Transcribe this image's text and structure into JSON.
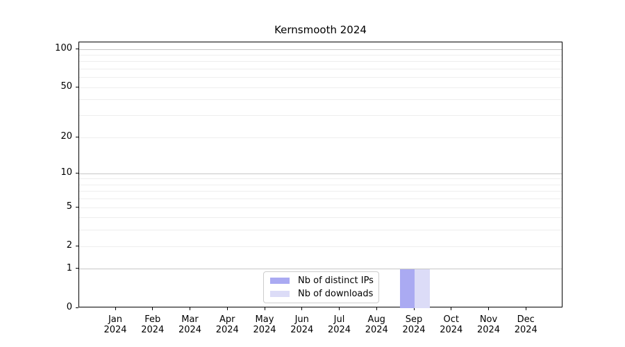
{
  "chart_data": {
    "type": "bar",
    "title": "Kernsmooth 2024",
    "x_months": [
      "Jan",
      "Feb",
      "Mar",
      "Apr",
      "May",
      "Jun",
      "Jul",
      "Aug",
      "Sep",
      "Oct",
      "Nov",
      "Dec"
    ],
    "x_year": "2024",
    "series": [
      {
        "name": "Nb of distinct IPs",
        "color": "#aaaaf2",
        "values": [
          0,
          0,
          0,
          0,
          0,
          0,
          0,
          0,
          1,
          0,
          0,
          0
        ]
      },
      {
        "name": "Nb of downloads",
        "color": "#dcdcf7",
        "values": [
          0,
          0,
          0,
          0,
          0,
          0,
          0,
          0,
          1,
          0,
          0,
          0
        ]
      }
    ],
    "y_axis": {
      "scale": "log1p",
      "tick_values": [
        100,
        50,
        20,
        10,
        5,
        2,
        1,
        0
      ],
      "major_grid_values": [
        1,
        10,
        100
      ],
      "minor_grid_values": [
        2,
        3,
        4,
        5,
        6,
        7,
        8,
        9,
        20,
        30,
        40,
        50,
        60,
        70,
        80,
        90
      ],
      "ylim": [
        0,
        113
      ]
    },
    "legend_position": "bottom-center",
    "colors": {
      "major_grid": "#c6c6c6",
      "minor_grid": "#eeeeee",
      "spine": "#000000",
      "text": "#000000",
      "legend_border": "#cccccc"
    }
  }
}
